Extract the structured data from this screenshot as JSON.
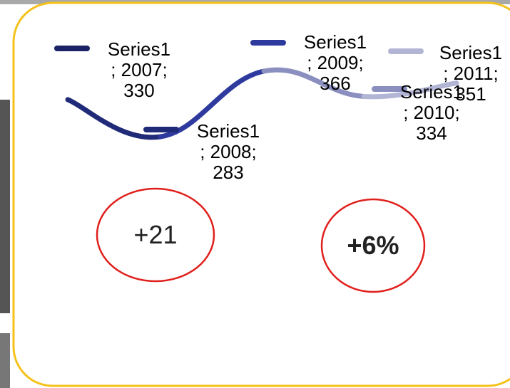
{
  "chart_data": {
    "type": "line",
    "categories": [
      "2007",
      "2008",
      "2009",
      "2010",
      "2011"
    ],
    "series": [
      {
        "name": "Series1",
        "colors": [
          "#1b2266",
          "#1f2a78",
          "#2e3a9e",
          "#8a8fbf",
          "#b3b5d5"
        ],
        "values": [
          330,
          283,
          366,
          334,
          351
        ],
        "value_labels": [
          "Series1\n; 2007;\n330",
          "Series1\n; 2008;\n283",
          "Series1\n; 2009;\n366",
          "Series1\n; 2010;\n334",
          "Series1\n; 2011;\n351"
        ]
      }
    ],
    "annotations": [
      {
        "text": "+21",
        "color": "#e0201c"
      },
      {
        "text": "+6%",
        "color": "#e0201c"
      }
    ]
  }
}
